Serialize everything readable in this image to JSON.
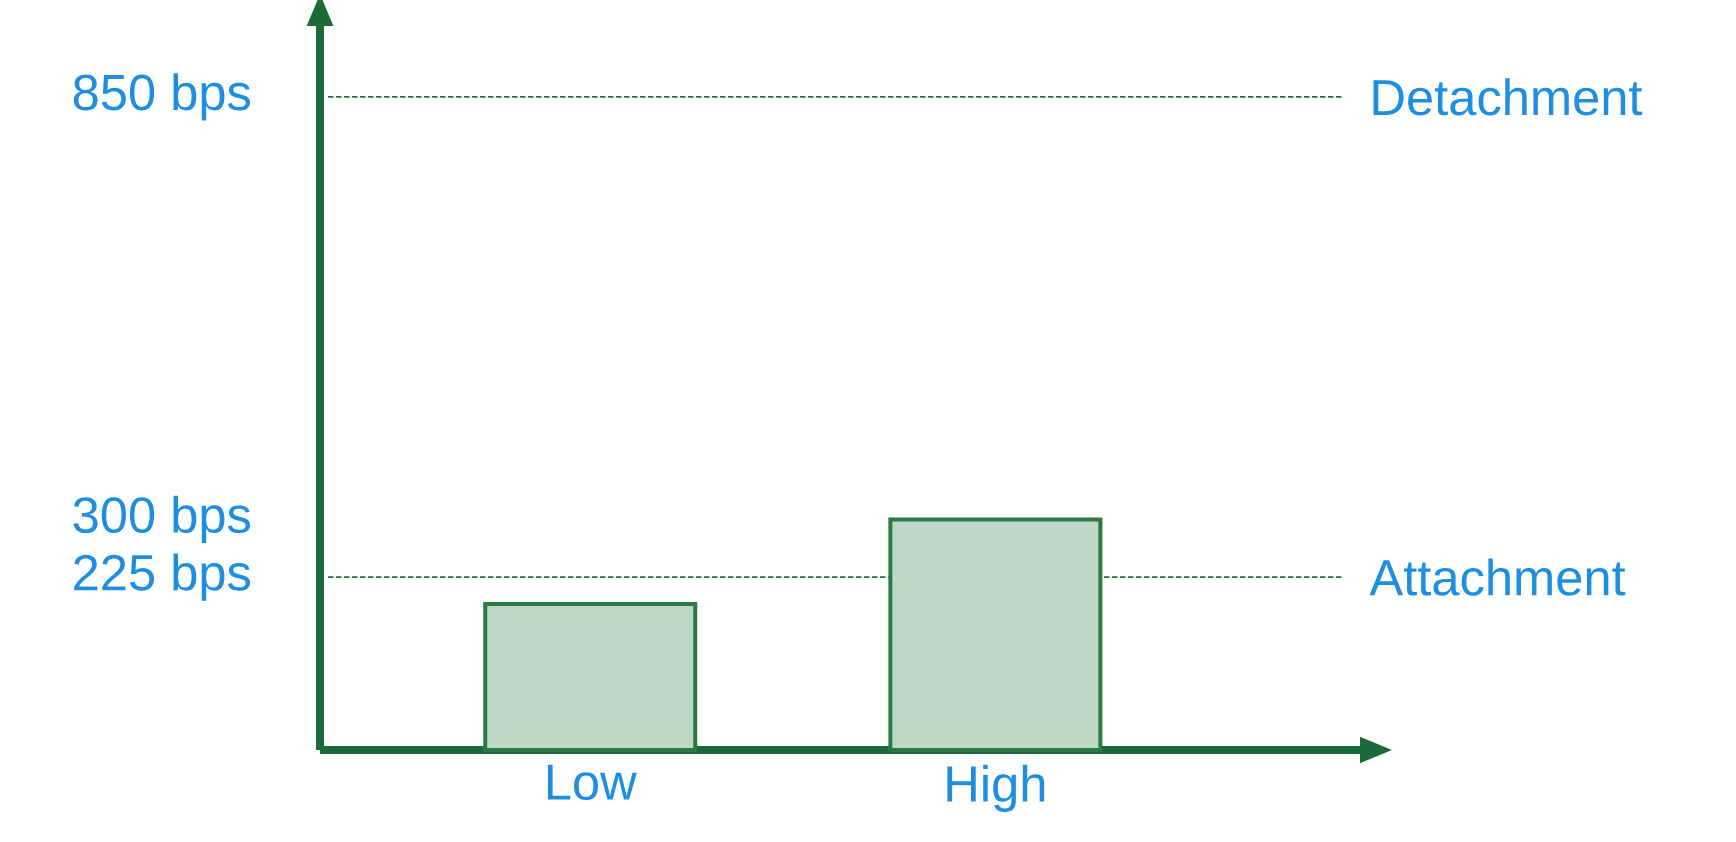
{
  "chart_data": {
    "type": "bar",
    "categories": [
      "Low",
      "High"
    ],
    "values": [
      190,
      300
    ],
    "color": "#2a7a42",
    "ylim": [
      0,
      950
    ],
    "yticks": [
      {
        "value": 225,
        "label": "225 bps"
      },
      {
        "value": 300,
        "label": "300 bps"
      },
      {
        "value": 850,
        "label": "850 bps"
      }
    ],
    "ref_lines": [
      {
        "axis": "y",
        "value": 225,
        "label": "Attachment",
        "color": "#1b6b3a",
        "line_style": "dashed"
      },
      {
        "axis": "y",
        "value": 850,
        "label": "Detachment",
        "color": "#1b6b3a",
        "line_style": "dashed"
      }
    ],
    "grid": false
  }
}
